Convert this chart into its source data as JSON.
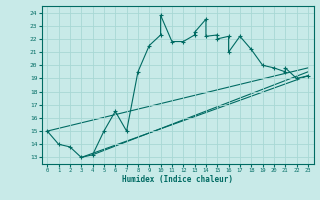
{
  "xlabel": "Humidex (Indice chaleur)",
  "bg_color": "#c8eae8",
  "grid_color": "#a8d8d4",
  "line_color": "#006b63",
  "xlim": [
    -0.5,
    23.5
  ],
  "ylim": [
    12.5,
    24.5
  ],
  "xticks": [
    0,
    1,
    2,
    3,
    4,
    5,
    6,
    7,
    8,
    9,
    10,
    11,
    12,
    13,
    14,
    15,
    16,
    17,
    18,
    19,
    20,
    21,
    22,
    23
  ],
  "yticks": [
    13,
    14,
    15,
    16,
    17,
    18,
    19,
    20,
    21,
    22,
    23,
    24
  ],
  "series": [
    [
      0,
      15.0
    ],
    [
      1,
      14.0
    ],
    [
      2,
      13.8
    ],
    [
      3,
      13.0
    ],
    [
      4,
      13.2
    ],
    [
      5,
      15.0
    ],
    [
      6,
      16.5
    ],
    [
      7,
      15.0
    ],
    [
      8,
      19.5
    ],
    [
      9,
      21.5
    ],
    [
      10,
      22.3
    ],
    [
      10,
      23.8
    ],
    [
      11,
      21.8
    ],
    [
      12,
      21.8
    ],
    [
      13,
      22.3
    ],
    [
      13,
      22.5
    ],
    [
      14,
      23.5
    ],
    [
      14,
      22.2
    ],
    [
      15,
      22.3
    ],
    [
      15,
      22.0
    ],
    [
      16,
      22.2
    ],
    [
      16,
      21.0
    ],
    [
      17,
      22.2
    ],
    [
      18,
      21.2
    ],
    [
      19,
      20.0
    ],
    [
      20,
      19.8
    ],
    [
      21,
      19.5
    ],
    [
      21,
      19.8
    ],
    [
      22,
      19.0
    ],
    [
      23,
      19.2
    ]
  ],
  "ref_lines": [
    [
      [
        0,
        15.0
      ],
      [
        23,
        19.8
      ]
    ],
    [
      [
        3,
        13.0
      ],
      [
        23,
        19.2
      ]
    ],
    [
      [
        4,
        13.2
      ],
      [
        23,
        19.5
      ]
    ]
  ]
}
